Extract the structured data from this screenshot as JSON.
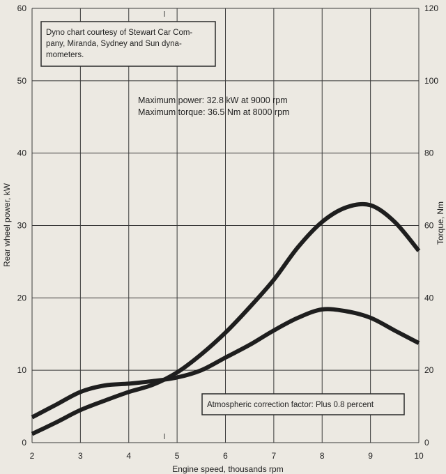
{
  "chart_data": {
    "type": "line",
    "xlabel": "Engine speed, thousands rpm",
    "ylabel_left": "Rear wheel power, kW",
    "ylabel_right": "Torque, Nm",
    "xlim": [
      2,
      10
    ],
    "ylim_left": [
      0,
      60
    ],
    "ylim_right": [
      0,
      120
    ],
    "x_ticks": [
      "2",
      "3",
      "4",
      "5",
      "6",
      "7",
      "8",
      "9",
      "10"
    ],
    "y_left_ticks": [
      "0",
      "10",
      "20",
      "30",
      "40",
      "50",
      "60"
    ],
    "y_right_ticks": [
      "0",
      "20",
      "40",
      "60",
      "80",
      "100",
      "120"
    ],
    "grid": true,
    "series": [
      {
        "name": "Power",
        "axis": "left",
        "x": [
          2,
          2.5,
          3,
          3.5,
          4,
          4.5,
          5,
          5.5,
          6,
          6.5,
          7,
          7.5,
          8,
          8.5,
          9,
          9.5,
          10
        ],
        "values": [
          1.2,
          2.8,
          4.5,
          5.8,
          7.0,
          8.0,
          9.7,
          12.2,
          15.2,
          18.7,
          22.5,
          27.0,
          30.5,
          32.5,
          32.8,
          30.5,
          26.5
        ]
      },
      {
        "name": "Torque",
        "axis": "right",
        "x": [
          2,
          2.5,
          3,
          3.5,
          4,
          4.5,
          5,
          5.5,
          6,
          6.5,
          7,
          7.5,
          8,
          8.5,
          9,
          9.5,
          10
        ],
        "values": [
          7.0,
          10.5,
          14.0,
          15.8,
          16.3,
          17.0,
          18.0,
          20.0,
          23.5,
          27.0,
          31.0,
          34.5,
          36.8,
          36.3,
          34.5,
          31.0,
          27.5
        ]
      }
    ],
    "annotations": [
      "Dyno chart courtesy of Stewart Car Com-",
      "pany, Miranda, Sydney and Sun dyna-",
      "mometers.",
      "Maximum power: 32.8 kW at 9000 rpm",
      "Maximum torque: 36.5 Nm at 8000 rpm",
      "Atmospheric correction factor: Plus 0.8 percent"
    ]
  },
  "colors": {
    "background": "#ece9e2",
    "grid": "#3a3a3a",
    "curve": "#1e1e1e",
    "text": "#222222"
  }
}
